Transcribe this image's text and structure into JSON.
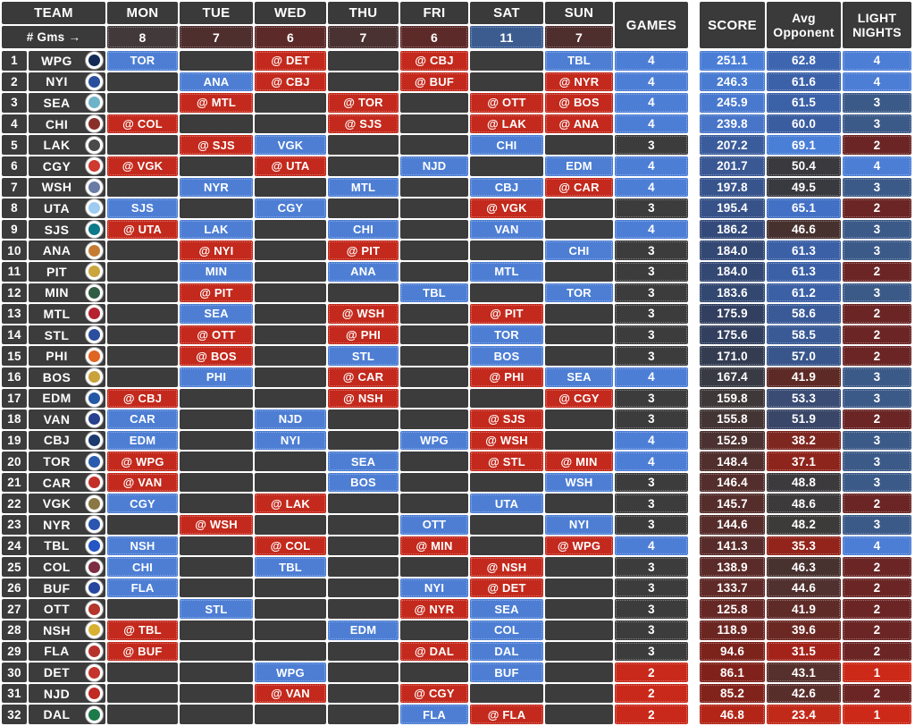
{
  "header": {
    "team_label": "TEAM",
    "days": [
      "MON",
      "TUE",
      "WED",
      "THU",
      "FRI",
      "SAT",
      "SUN"
    ],
    "games_label": "GAMES",
    "score_label": "SCORE",
    "avg_line1": "Avg",
    "avg_line2": "Opponent",
    "light_line1": "LIGHT",
    "light_line2": "NIGHTS",
    "gms_label": "# Gms →",
    "gms_counts": [
      {
        "value": "8",
        "color": "#423a3a"
      },
      {
        "value": "7",
        "color": "#4f2e2e"
      },
      {
        "value": "6",
        "color": "#5d2a2a"
      },
      {
        "value": "7",
        "color": "#4b3232"
      },
      {
        "value": "6",
        "color": "#5d2a2a"
      },
      {
        "value": "11",
        "color": "#3c5c90"
      },
      {
        "value": "7",
        "color": "#4f2e2e"
      }
    ]
  },
  "colors": {
    "home_game": "#4d7ed4",
    "away_game": "#c3291c",
    "empty_cell": "#3d3c3c",
    "header_bg": "#3b3a3a",
    "games": {
      "4": "#4d7ed6",
      "3": "#3d3c3c",
      "2": "#c9291a"
    },
    "light_nights": {
      "4": "#4d7ed6",
      "3": "#3c5a88",
      "2": "#6b2525",
      "1": "#cc2918"
    }
  },
  "teams": [
    {
      "rank": "1",
      "abbr": "WPG",
      "logo_color": "#122c55",
      "days": [
        {
          "opp": "TOR",
          "away": false
        },
        null,
        {
          "opp": "DET",
          "away": true
        },
        null,
        {
          "opp": "CBJ",
          "away": true
        },
        null,
        {
          "opp": "TBL",
          "away": false
        }
      ],
      "games": "4",
      "score": "251.1",
      "score_color": "#4a7ed6",
      "avg": "62.8",
      "avg_color": "#3d65b0",
      "light": "4"
    },
    {
      "rank": "2",
      "abbr": "NYI",
      "logo_color": "#2a4f9e",
      "days": [
        null,
        {
          "opp": "ANA",
          "away": false
        },
        {
          "opp": "CBJ",
          "away": true
        },
        null,
        {
          "opp": "BUF",
          "away": true
        },
        null,
        {
          "opp": "NYR",
          "away": true
        }
      ],
      "games": "4",
      "score": "246.3",
      "score_color": "#497bd1",
      "avg": "61.6",
      "avg_color": "#3b61a8",
      "light": "4"
    },
    {
      "rank": "3",
      "abbr": "SEA",
      "logo_color": "#6fb3c9",
      "days": [
        null,
        {
          "opp": "MTL",
          "away": true
        },
        null,
        {
          "opp": "TOR",
          "away": true
        },
        null,
        {
          "opp": "OTT",
          "away": true
        },
        {
          "opp": "BOS",
          "away": true
        }
      ],
      "games": "4",
      "score": "245.9",
      "score_color": "#4979ce",
      "avg": "61.5",
      "avg_color": "#3b61a7",
      "light": "3"
    },
    {
      "rank": "4",
      "abbr": "CHI",
      "logo_color": "#8a2f28",
      "days": [
        {
          "opp": "COL",
          "away": true
        },
        null,
        null,
        {
          "opp": "SJS",
          "away": true
        },
        null,
        {
          "opp": "LAK",
          "away": true
        },
        {
          "opp": "ANA",
          "away": true
        }
      ],
      "games": "4",
      "score": "239.8",
      "score_color": "#4875c8",
      "avg": "60.0",
      "avg_color": "#3a5da0",
      "light": "3"
    },
    {
      "rank": "5",
      "abbr": "LAK",
      "logo_color": "#4a4a4a",
      "days": [
        null,
        {
          "opp": "SJS",
          "away": true
        },
        {
          "opp": "VGK",
          "away": false
        },
        null,
        null,
        {
          "opp": "CHI",
          "away": false
        },
        null
      ],
      "games": "3",
      "score": "207.2",
      "score_color": "#3b5c9c",
      "avg": "69.1",
      "avg_color": "#4a7fd8",
      "light": "2"
    },
    {
      "rank": "6",
      "abbr": "CGY",
      "logo_color": "#ce3a2f",
      "days": [
        {
          "opp": "VGK",
          "away": true
        },
        null,
        {
          "opp": "UTA",
          "away": true
        },
        null,
        {
          "opp": "NJD",
          "away": false
        },
        null,
        {
          "opp": "EDM",
          "away": false
        }
      ],
      "games": "4",
      "score": "201.7",
      "score_color": "#3a5894",
      "avg": "50.4",
      "avg_color": "#3a393d",
      "light": "4"
    },
    {
      "rank": "7",
      "abbr": "WSH",
      "logo_color": "#6a7ba6",
      "days": [
        null,
        {
          "opp": "NYR",
          "away": false
        },
        null,
        {
          "opp": "MTL",
          "away": false
        },
        null,
        {
          "opp": "CBJ",
          "away": false
        },
        {
          "opp": "CAR",
          "away": true
        }
      ],
      "games": "4",
      "score": "197.8",
      "score_color": "#38548c",
      "avg": "49.5",
      "avg_color": "#393940",
      "light": "3"
    },
    {
      "rank": "8",
      "abbr": "UTA",
      "logo_color": "#9ecbf0",
      "days": [
        {
          "opp": "SJS",
          "away": false
        },
        null,
        {
          "opp": "CGY",
          "away": false
        },
        null,
        null,
        {
          "opp": "VGK",
          "away": true
        },
        null
      ],
      "games": "3",
      "score": "195.4",
      "score_color": "#375288",
      "avg": "65.1",
      "avg_color": "#4270c4",
      "light": "2"
    },
    {
      "rank": "9",
      "abbr": "SJS",
      "logo_color": "#0d7a8a",
      "days": [
        {
          "opp": "UTA",
          "away": true
        },
        {
          "opp": "LAK",
          "away": false
        },
        null,
        {
          "opp": "CHI",
          "away": false
        },
        null,
        {
          "opp": "VAN",
          "away": false
        },
        null
      ],
      "games": "4",
      "score": "186.2",
      "score_color": "#344a7a",
      "avg": "46.6",
      "avg_color": "#46312f",
      "light": "3"
    },
    {
      "rank": "10",
      "abbr": "ANA",
      "logo_color": "#c57c32",
      "days": [
        null,
        {
          "opp": "NYI",
          "away": true
        },
        null,
        {
          "opp": "PIT",
          "away": true
        },
        null,
        null,
        {
          "opp": "CHI",
          "away": false
        }
      ],
      "games": "3",
      "score": "184.0",
      "score_color": "#334873",
      "avg": "61.3",
      "avg_color": "#3b60a6",
      "light": "3"
    },
    {
      "rank": "11",
      "abbr": "PIT",
      "logo_color": "#caa53d",
      "days": [
        null,
        {
          "opp": "MIN",
          "away": false
        },
        null,
        {
          "opp": "ANA",
          "away": false
        },
        null,
        {
          "opp": "MTL",
          "away": false
        },
        null
      ],
      "games": "3",
      "score": "184.0",
      "score_color": "#334873",
      "avg": "61.3",
      "avg_color": "#3b60a6",
      "light": "2"
    },
    {
      "rank": "12",
      "abbr": "MIN",
      "logo_color": "#2f5d43",
      "days": [
        null,
        {
          "opp": "PIT",
          "away": true
        },
        null,
        null,
        {
          "opp": "TBL",
          "away": false
        },
        null,
        {
          "opp": "TOR",
          "away": false
        }
      ],
      "games": "3",
      "score": "183.6",
      "score_color": "#334871",
      "avg": "61.2",
      "avg_color": "#3b60a5",
      "light": "3"
    },
    {
      "rank": "13",
      "abbr": "MTL",
      "logo_color": "#b52230",
      "days": [
        null,
        {
          "opp": "SEA",
          "away": false
        },
        null,
        {
          "opp": "WSH",
          "away": true
        },
        null,
        {
          "opp": "PIT",
          "away": true
        },
        null
      ],
      "games": "3",
      "score": "175.9",
      "score_color": "#323f60",
      "avg": "58.6",
      "avg_color": "#395a96",
      "light": "2"
    },
    {
      "rank": "14",
      "abbr": "STL",
      "logo_color": "#2b4f9e",
      "days": [
        null,
        {
          "opp": "OTT",
          "away": true
        },
        null,
        {
          "opp": "PHI",
          "away": true
        },
        null,
        {
          "opp": "TOR",
          "away": false
        },
        null
      ],
      "games": "3",
      "score": "175.6",
      "score_color": "#323f5f",
      "avg": "58.5",
      "avg_color": "#395a95",
      "light": "2"
    },
    {
      "rank": "15",
      "abbr": "PHI",
      "logo_color": "#e06520",
      "days": [
        null,
        {
          "opp": "BOS",
          "away": true
        },
        null,
        {
          "opp": "STL",
          "away": false
        },
        null,
        {
          "opp": "BOS",
          "away": false
        },
        null
      ],
      "games": "3",
      "score": "171.0",
      "score_color": "#343c52",
      "avg": "57.0",
      "avg_color": "#38568c",
      "light": "2"
    },
    {
      "rank": "16",
      "abbr": "BOS",
      "logo_color": "#caa23a",
      "days": [
        null,
        {
          "opp": "PHI",
          "away": false
        },
        null,
        {
          "opp": "CAR",
          "away": true
        },
        null,
        {
          "opp": "PHI",
          "away": true
        },
        {
          "opp": "SEA",
          "away": false
        }
      ],
      "games": "4",
      "score": "167.4",
      "score_color": "#383a44",
      "avg": "41.9",
      "avg_color": "#5e2a26",
      "light": "3"
    },
    {
      "rank": "17",
      "abbr": "EDM",
      "logo_color": "#2457a4",
      "days": [
        {
          "opp": "CBJ",
          "away": true
        },
        null,
        null,
        {
          "opp": "NSH",
          "away": true
        },
        null,
        null,
        {
          "opp": "CGY",
          "away": true
        }
      ],
      "games": "3",
      "score": "159.8",
      "score_color": "#3e3839",
      "avg": "53.3",
      "avg_color": "#3a4c74",
      "light": "3"
    },
    {
      "rank": "18",
      "abbr": "VAN",
      "logo_color": "#27408f",
      "days": [
        {
          "opp": "CAR",
          "away": false
        },
        null,
        {
          "opp": "NJD",
          "away": false
        },
        null,
        null,
        {
          "opp": "SJS",
          "away": true
        },
        null
      ],
      "games": "3",
      "score": "155.8",
      "score_color": "#443535",
      "avg": "51.9",
      "avg_color": "#3a4668",
      "light": "2"
    },
    {
      "rank": "19",
      "abbr": "CBJ",
      "logo_color": "#1d3a6e",
      "days": [
        {
          "opp": "EDM",
          "away": false
        },
        null,
        {
          "opp": "NYI",
          "away": false
        },
        null,
        {
          "opp": "WPG",
          "away": false
        },
        {
          "opp": "WSH",
          "away": true
        },
        null
      ],
      "games": "4",
      "score": "152.9",
      "score_color": "#4b3130",
      "avg": "38.2",
      "avg_color": "#7e2720",
      "light": "3"
    },
    {
      "rank": "20",
      "abbr": "TOR",
      "logo_color": "#2a5cad",
      "days": [
        {
          "opp": "WPG",
          "away": true
        },
        null,
        null,
        {
          "opp": "SEA",
          "away": false
        },
        null,
        {
          "opp": "STL",
          "away": true
        },
        {
          "opp": "MIN",
          "away": true
        }
      ],
      "games": "4",
      "score": "148.4",
      "score_color": "#512f2d",
      "avg": "37.1",
      "avg_color": "#8d251c",
      "light": "3"
    },
    {
      "rank": "21",
      "abbr": "CAR",
      "logo_color": "#c32f28",
      "days": [
        {
          "opp": "VAN",
          "away": true
        },
        null,
        null,
        {
          "opp": "BOS",
          "away": false
        },
        null,
        null,
        {
          "opp": "WSH",
          "away": false
        }
      ],
      "games": "3",
      "score": "146.4",
      "score_color": "#542e2c",
      "avg": "48.8",
      "avg_color": "#3c3a3c",
      "light": "3"
    },
    {
      "rank": "22",
      "abbr": "VGK",
      "logo_color": "#8a7744",
      "days": [
        {
          "opp": "CGY",
          "away": false
        },
        null,
        {
          "opp": "LAK",
          "away": true
        },
        null,
        null,
        {
          "opp": "UTA",
          "away": false
        },
        null
      ],
      "games": "3",
      "score": "145.7",
      "score_color": "#552e2c",
      "avg": "48.6",
      "avg_color": "#3c3a3b",
      "light": "2"
    },
    {
      "rank": "23",
      "abbr": "NYR",
      "logo_color": "#2a55b0",
      "days": [
        null,
        {
          "opp": "WSH",
          "away": true
        },
        null,
        null,
        {
          "opp": "OTT",
          "away": false
        },
        null,
        {
          "opp": "NYI",
          "away": false
        }
      ],
      "games": "3",
      "score": "144.6",
      "score_color": "#562d2b",
      "avg": "48.2",
      "avg_color": "#3d3a3a",
      "light": "3"
    },
    {
      "rank": "24",
      "abbr": "TBL",
      "logo_color": "#2456c4",
      "days": [
        {
          "opp": "NSH",
          "away": false
        },
        null,
        {
          "opp": "COL",
          "away": true
        },
        null,
        {
          "opp": "MIN",
          "away": true
        },
        null,
        {
          "opp": "WPG",
          "away": true
        }
      ],
      "games": "4",
      "score": "141.3",
      "score_color": "#582c2a",
      "avg": "35.3",
      "avg_color": "#93241b",
      "light": "4"
    },
    {
      "rank": "25",
      "abbr": "COL",
      "logo_color": "#7c2d42",
      "days": [
        {
          "opp": "CHI",
          "away": false
        },
        null,
        {
          "opp": "TBL",
          "away": false
        },
        null,
        null,
        {
          "opp": "NSH",
          "away": true
        },
        null
      ],
      "games": "3",
      "score": "138.9",
      "score_color": "#5b2b29",
      "avg": "46.3",
      "avg_color": "#48322f",
      "light": "2"
    },
    {
      "rank": "26",
      "abbr": "BUF",
      "logo_color": "#27479e",
      "days": [
        {
          "opp": "FLA",
          "away": false
        },
        null,
        null,
        null,
        {
          "opp": "NYI",
          "away": false
        },
        {
          "opp": "DET",
          "away": true
        },
        null
      ],
      "games": "3",
      "score": "133.7",
      "score_color": "#5f2a27",
      "avg": "44.6",
      "avg_color": "#513030",
      "light": "2"
    },
    {
      "rank": "27",
      "abbr": "OTT",
      "logo_color": "#b5342b",
      "days": [
        null,
        {
          "opp": "STL",
          "away": false
        },
        null,
        null,
        {
          "opp": "NYR",
          "away": true
        },
        {
          "opp": "SEA",
          "away": false
        },
        null
      ],
      "games": "3",
      "score": "125.8",
      "score_color": "#652824",
      "avg": "41.9",
      "avg_color": "#5e2b27",
      "light": "2"
    },
    {
      "rank": "28",
      "abbr": "NSH",
      "logo_color": "#d8b032",
      "days": [
        {
          "opp": "TBL",
          "away": true
        },
        null,
        null,
        {
          "opp": "EDM",
          "away": false
        },
        null,
        {
          "opp": "COL",
          "away": false
        },
        null
      ],
      "games": "3",
      "score": "118.9",
      "score_color": "#6c2622",
      "avg": "39.6",
      "avg_color": "#6b2823",
      "light": "2"
    },
    {
      "rank": "29",
      "abbr": "FLA",
      "logo_color": "#b8322c",
      "days": [
        {
          "opp": "BUF",
          "away": true
        },
        null,
        null,
        null,
        {
          "opp": "DAL",
          "away": true
        },
        {
          "opp": "DAL",
          "away": false
        },
        null
      ],
      "games": "3",
      "score": "94.6",
      "score_color": "#7c231c",
      "avg": "31.5",
      "avg_color": "#a3231a",
      "light": "2"
    },
    {
      "rank": "30",
      "abbr": "DET",
      "logo_color": "#c5342c",
      "days": [
        null,
        null,
        {
          "opp": "WPG",
          "away": false
        },
        null,
        null,
        {
          "opp": "BUF",
          "away": false
        },
        null
      ],
      "games": "2",
      "score": "86.1",
      "score_color": "#80221b",
      "avg": "43.1",
      "avg_color": "#55302d",
      "light": "1"
    },
    {
      "rank": "31",
      "abbr": "NJD",
      "logo_color": "#c02a24",
      "days": [
        null,
        null,
        {
          "opp": "VAN",
          "away": true
        },
        null,
        {
          "opp": "CGY",
          "away": true
        },
        null,
        null
      ],
      "games": "2",
      "score": "85.2",
      "score_color": "#81221b",
      "avg": "42.6",
      "avg_color": "#582e2b",
      "light": "2"
    },
    {
      "rank": "32",
      "abbr": "DAL",
      "logo_color": "#1d7a4a",
      "days": [
        null,
        null,
        null,
        null,
        {
          "opp": "FLA",
          "away": false
        },
        {
          "opp": "FLA",
          "away": true
        },
        null
      ],
      "games": "2",
      "score": "46.8",
      "score_color": "#b22517",
      "avg": "23.4",
      "avg_color": "#c12a19",
      "light": "1"
    }
  ]
}
